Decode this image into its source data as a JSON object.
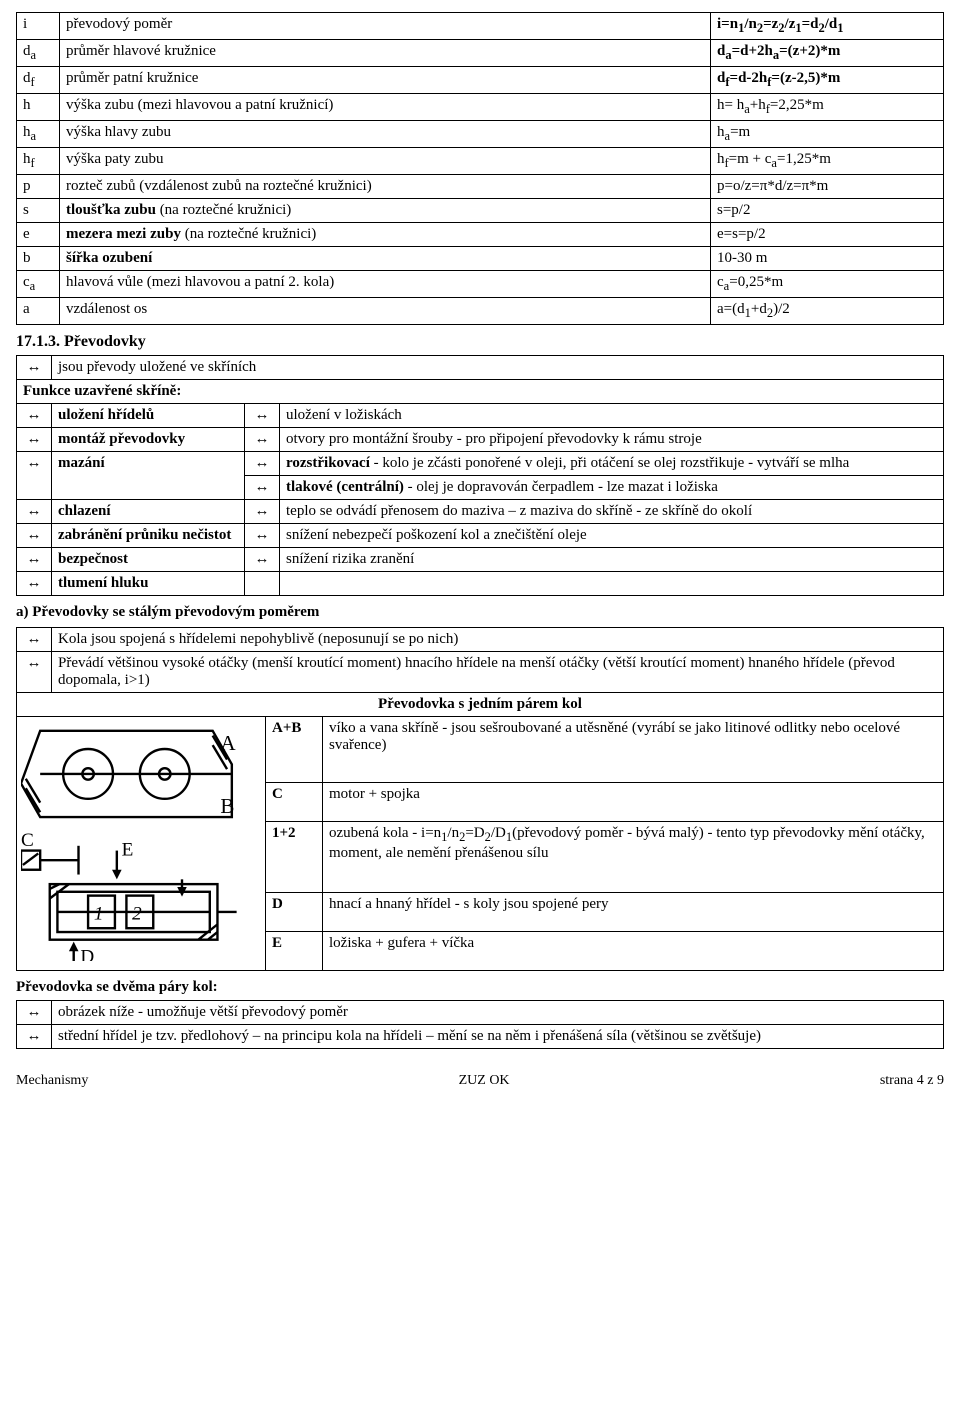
{
  "table_params": {
    "rows": [
      {
        "sym": "i",
        "desc": "převodový poměr",
        "val": "i=n₁/n₂=z₂/z₁=d₂/d₁",
        "val_bold": true
      },
      {
        "sym": "dₐ",
        "desc": "průměr hlavové kružnice",
        "val": "dₐ=d+2hₐ=(z+2)*m",
        "val_bold": true
      },
      {
        "sym": "d_f",
        "desc": "průměr patní kružnice",
        "val": "d_f=d-2h_f=(z-2,5)*m",
        "val_bold": true
      },
      {
        "sym": "h",
        "desc": "výška zubu (mezi hlavovou a patní kružnicí)",
        "val": "h= hₐ+h_f=2,25*m"
      },
      {
        "sym": "hₐ",
        "desc": "výška hlavy zubu",
        "val": "hₐ=m"
      },
      {
        "sym": "h_f",
        "desc": "výška paty zubu",
        "val": "h_f=m + cₐ=1,25*m"
      },
      {
        "sym": "p",
        "desc": "rozteč zubů (vzdálenost zubů na roztečné kružnici)",
        "val": "p=o/z=π*d/z=π*m"
      },
      {
        "sym": "s",
        "desc": "tloušťka zubu (na roztečné kružnici)",
        "val": "s=p/2",
        "desc_bold": true
      },
      {
        "sym": "e",
        "desc": "mezera mezi zuby (na roztečné kružnici)",
        "val": "e=s=p/2",
        "desc_bold": true
      },
      {
        "sym": "b",
        "desc": "šířka ozubení",
        "val": "10-30 m",
        "desc_bold": true
      },
      {
        "sym": "cₐ",
        "desc": "hlavová vůle (mezi hlavovou a patní 2. kola)",
        "val": "cₐ=0,25*m"
      },
      {
        "sym": "a",
        "desc": "vzdálenost os",
        "val": "a=(d₁+d₂)/2"
      }
    ]
  },
  "section_title": "17.1.3. Převodovky",
  "intro_row": "jsou převody uložené ve skříních",
  "funkce_head": "Funkce uzavřené skříně:",
  "funkce_rows": [
    {
      "label": "uložení hřídelů",
      "right": [
        {
          "t": "uložení v ložiskách"
        }
      ]
    },
    {
      "label": "montáž převodovky",
      "right": [
        {
          "t": "otvory pro montážní šrouby - pro připojení převodovky k rámu stroje"
        }
      ]
    },
    {
      "label": "mazání",
      "right": [
        {
          "t": "rozstřikovací - kolo je zčásti ponořené v oleji, při otáčení se olej rozstřikuje - vytváří se mlha",
          "lead_bold": "rozstřikovací"
        },
        {
          "t": "tlakové (centrální) - olej je dopravován čerpadlem - lze mazat i ložiska",
          "lead_bold": "tlakové (centrální)"
        }
      ]
    },
    {
      "label": "chlazení",
      "right": [
        {
          "t": " teplo se odvádí přenosem do maziva – z maziva do skříně - ze skříně do okolí"
        }
      ]
    },
    {
      "label": "zabránění průniku nečistot",
      "right": [
        {
          "t": "snížení nebezpečí poškození kol a znečištění oleje"
        }
      ]
    },
    {
      "label": "bezpečnost",
      "right": [
        {
          "t": "snížení rizika zranění"
        }
      ]
    },
    {
      "label": "tlumení hluku",
      "right": [
        {
          "t": ""
        }
      ],
      "no_arrow": true
    }
  ],
  "section_a_title": "a) Převodovky se stálým převodovým poměrem",
  "stalym_rows": [
    "Kola jsou spojená s hřídelemi nepohyblivě (neposunují se po nich)",
    "Převádí většinou vysoké otáčky (menší kroutící moment) hnacího hřídele na menší otáčky (větší kroutící moment) hnaného hřídele (převod dopomala, i>1)"
  ],
  "gearbox_head": "Převodovka s jedním párem kol",
  "gearbox_rows": [
    {
      "k": "A+B",
      "v": "víko a vana skříně - jsou sešroubované a utěsněné (vyrábí se jako litinové odlitky nebo ocelové svařence)"
    },
    {
      "k": "C",
      "v": "motor + spojka"
    },
    {
      "k": "1+2",
      "v": "ozubená kola - i=n₁/n₂=D₂/D₁(převodový poměr  - bývá malý) - tento typ převodovky mění otáčky, moment, ale nemění přenášenou sílu"
    },
    {
      "k": "D",
      "v": "hnací a hnaný hřídel - s koly jsou spojené pery"
    },
    {
      "k": "E",
      "v": "ložiska + gufera + víčka"
    }
  ],
  "two_pairs_title": "Převodovka se dvěma páry kol:",
  "two_pairs_rows": [
    "obrázek níže - umožňuje větší převodový poměr",
    "střední hřídel je tzv. předlohový – na principu kola na hřídeli – mění se na něm i přenášená síla (většinou se zvětšuje)"
  ],
  "footer": {
    "left": "Mechanismy",
    "center": "ZUZ OK",
    "right": "strana 4 z 9"
  },
  "arrow": "↔"
}
